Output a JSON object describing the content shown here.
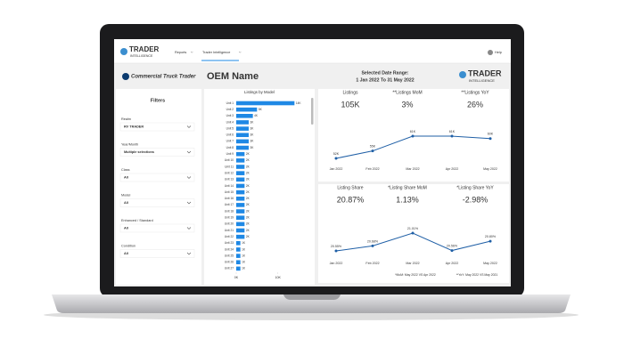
{
  "nav": {
    "logo_title": "TRADER",
    "logo_subtitle": "INTELLIGENCE",
    "menu": [
      "Reports",
      "Trader Intelligence"
    ],
    "help": "Help"
  },
  "header": {
    "brand": "Commercial Truck Trader",
    "title": "OEM Name",
    "date_range_label": "Selected Date Range:",
    "date_range": "1 Jan 2022 To 31 May 2022",
    "logo_title": "TRADER",
    "logo_subtitle": "INTELLIGENCE"
  },
  "filters": {
    "title": "Filters",
    "items": [
      {
        "label": "Realm",
        "value": "RV TRADER"
      },
      {
        "label": "Year/Month",
        "value": "Multiple selections"
      },
      {
        "label": "Class",
        "value": "All"
      },
      {
        "label": "Model",
        "value": "All"
      },
      {
        "label": "Enhanced / Standard",
        "value": "All"
      },
      {
        "label": "Condition",
        "value": "All"
      }
    ]
  },
  "kpis": [
    {
      "label": "Listings",
      "value": "105K",
      "color": "#222222"
    },
    {
      "label": "**Listings MoM",
      "value": "3%",
      "color": "#2ca02c"
    },
    {
      "label": "**Listings YoY",
      "value": "26%",
      "color": "#2ca02c"
    },
    {
      "label": "Listing Share",
      "value": "20.87%",
      "color": "#222222"
    },
    {
      "label": "*Listing Share MoM",
      "value": "1.13%",
      "color": "#2ca02c"
    },
    {
      "label": "*Listing Share YoY",
      "value": "-2.98%",
      "color": "#d62728"
    }
  ],
  "notes": [
    "*MoM: May 2022 VS Apr 2022",
    "**YoY: May 2022 VS May 2021"
  ],
  "chart_data": [
    {
      "type": "bar",
      "orientation": "horizontal",
      "title": "Listings by Model",
      "categories": [
        "Unit 1",
        "Unit 2",
        "Unit 3",
        "Unit 4",
        "Unit 5",
        "Unit 6",
        "Unit 7",
        "Unit 8",
        "Unit 9",
        "Unit 10",
        "Unit 11",
        "Unit 12",
        "Unit 13",
        "Unit 14",
        "Unit 15",
        "Unit 16",
        "Unit 17",
        "Unit 18",
        "Unit 19",
        "Unit 20",
        "Unit 21",
        "Unit 22",
        "Unit 23",
        "Unit 24",
        "Unit 25",
        "Unit 26",
        "Unit 27"
      ],
      "values": [
        14000,
        5000,
        4000,
        3000,
        3000,
        3000,
        3000,
        3000,
        2000,
        2000,
        2000,
        2000,
        2000,
        2000,
        2000,
        2000,
        2000,
        2000,
        2000,
        2000,
        2000,
        2000,
        1000,
        1000,
        1000,
        1000,
        1000
      ],
      "value_labels": [
        "14K",
        "5K",
        "4K",
        "3K",
        "3K",
        "3K",
        "3K",
        "3K",
        "2K",
        "2K",
        "2K",
        "2K",
        "2K",
        "2K",
        "2K",
        "2K",
        "2K",
        "2K",
        "2K",
        "2K",
        "2K",
        "2K",
        "1K",
        "1K",
        "1K",
        "1K",
        "1K"
      ],
      "color": "#1e88e5",
      "xlim": [
        0,
        15000
      ],
      "xticks": [
        {
          "value": 0,
          "label": "0K"
        },
        {
          "value": 10000,
          "label": "10K"
        }
      ]
    },
    {
      "type": "line",
      "categories": [
        "Jan 2022",
        "Feb 2022",
        "Mar 2022",
        "Apr 2022",
        "May 2022"
      ],
      "values": [
        52000,
        55000,
        61000,
        61000,
        60000
      ],
      "value_labels": [
        "52K",
        "55K",
        "61K",
        "61K",
        "60K"
      ],
      "color": "#1f5fa6"
    },
    {
      "type": "line",
      "categories": [
        "Jan 2022",
        "Feb 2022",
        "Mar 2022",
        "Apr 2022",
        "May 2022"
      ],
      "values": [
        20.55,
        20.68,
        21.01,
        20.56,
        20.8
      ],
      "value_labels": [
        "20.55%",
        "20.68%",
        "21.01%",
        "20.56%",
        "20.80%"
      ],
      "color": "#1f5fa6"
    }
  ]
}
